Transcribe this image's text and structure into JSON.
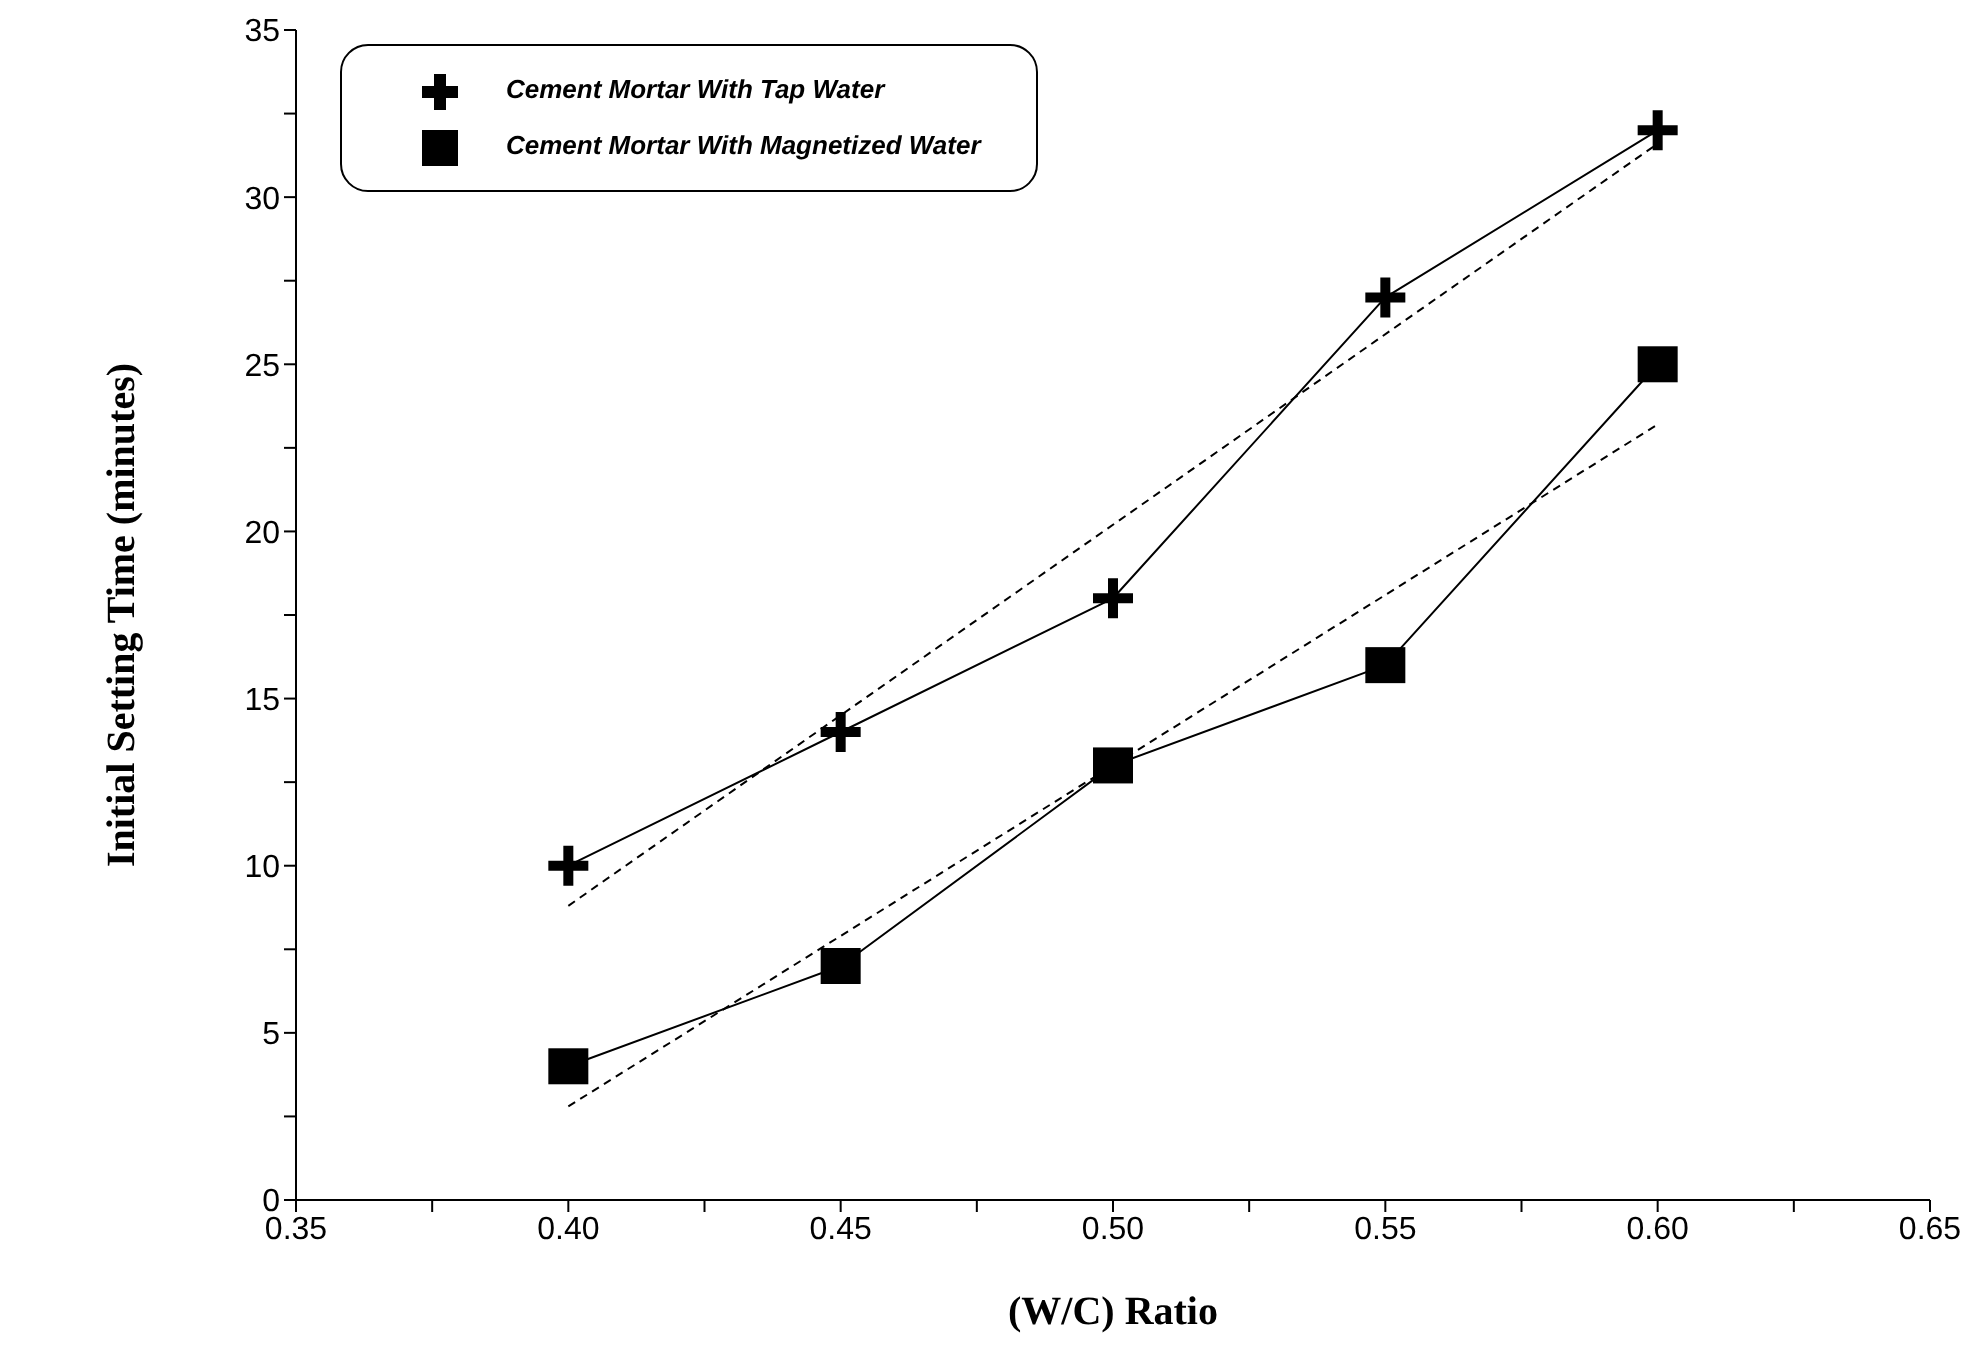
{
  "chart_data": {
    "type": "line",
    "xlabel": "(W/C) Ratio",
    "ylabel": "Initial Setting Time (minutes)",
    "xlim": [
      0.35,
      0.65
    ],
    "xticks": [
      {
        "value": 0.35,
        "label": "0.35"
      },
      {
        "value": 0.375,
        "label": null
      },
      {
        "value": 0.4,
        "label": "0.40"
      },
      {
        "value": 0.425,
        "label": null
      },
      {
        "value": 0.45,
        "label": "0.45"
      },
      {
        "value": 0.475,
        "label": null
      },
      {
        "value": 0.5,
        "label": "0.50"
      },
      {
        "value": 0.525,
        "label": null
      },
      {
        "value": 0.55,
        "label": "0.55"
      },
      {
        "value": 0.575,
        "label": null
      },
      {
        "value": 0.6,
        "label": "0.60"
      },
      {
        "value": 0.625,
        "label": null
      },
      {
        "value": 0.65,
        "label": "0.65"
      }
    ],
    "ylim": [
      0,
      35
    ],
    "yticks": [
      0,
      {
        "value": 2.5,
        "label": null
      },
      5,
      {
        "value": 7.5,
        "label": null
      },
      10,
      {
        "value": 12.5,
        "label": null
      },
      15,
      {
        "value": 17.5,
        "label": null
      },
      20,
      {
        "value": 22.5,
        "label": null
      },
      25,
      {
        "value": 27.5,
        "label": null
      },
      30,
      {
        "value": 32.5,
        "label": null
      },
      35
    ],
    "grid": false,
    "legend": "top left",
    "series": [
      {
        "name": "Cement Mortar With Tap Water",
        "color": "#000000",
        "marker": "cross",
        "line_style": "solid",
        "x": [
          0.4,
          0.45,
          0.5,
          0.55,
          0.6
        ],
        "values": [
          10,
          14,
          18,
          27,
          32
        ]
      },
      {
        "name": "Cement Mortar With Magnetized Water",
        "color": "#000000",
        "marker": "square",
        "line_style": "solid",
        "x": [
          0.4,
          0.45,
          0.5,
          0.55,
          0.6
        ],
        "values": [
          4,
          7,
          13,
          16,
          25
        ]
      },
      {
        "type": "line",
        "color": "#000000",
        "marker": "none",
        "line_style": "dashed",
        "x": [
          0.4,
          0.6
        ],
        "values": [
          8.8,
          31.6
        ]
      },
      {
        "type": "line",
        "color": "#000000",
        "marker": "none",
        "line_style": "dashed",
        "x": [
          0.4,
          0.6
        ],
        "values": [
          2.8,
          23.2
        ]
      }
    ]
  }
}
